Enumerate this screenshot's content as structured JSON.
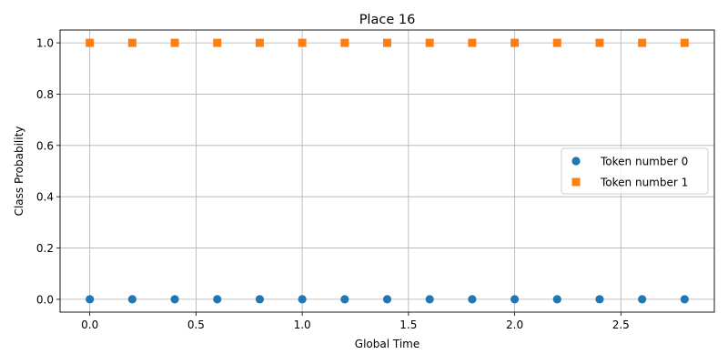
{
  "chart_data": {
    "type": "scatter",
    "title": "Place 16",
    "xlabel": "Global Time",
    "ylabel": "Class Probability",
    "xlim": [
      -0.14,
      2.94
    ],
    "ylim": [
      -0.05,
      1.05
    ],
    "xticks": [
      0.0,
      0.5,
      1.0,
      1.5,
      2.0,
      2.5
    ],
    "xtick_labels": [
      "0.0",
      "0.5",
      "1.0",
      "1.5",
      "2.0",
      "2.5"
    ],
    "yticks": [
      0.0,
      0.2,
      0.4,
      0.6,
      0.8,
      1.0
    ],
    "ytick_labels": [
      "0.0",
      "0.2",
      "0.4",
      "0.6",
      "0.8",
      "1.0"
    ],
    "grid": true,
    "legend_position": "center-right",
    "series": [
      {
        "name": "Token number 0",
        "marker": "circle",
        "color": "#1f77b4",
        "x": [
          0.0,
          0.2,
          0.4,
          0.6,
          0.8,
          1.0,
          1.2,
          1.4,
          1.6,
          1.8,
          2.0,
          2.2,
          2.4,
          2.6,
          2.8
        ],
        "y": [
          0,
          0,
          0,
          0,
          0,
          0,
          0,
          0,
          0,
          0,
          0,
          0,
          0,
          0,
          0
        ]
      },
      {
        "name": "Token number 1",
        "marker": "square",
        "color": "#ff7f0e",
        "x": [
          0.0,
          0.2,
          0.4,
          0.6,
          0.8,
          1.0,
          1.2,
          1.4,
          1.6,
          1.8,
          2.0,
          2.2,
          2.4,
          2.6,
          2.8
        ],
        "y": [
          1,
          1,
          1,
          1,
          1,
          1,
          1,
          1,
          1,
          1,
          1,
          1,
          1,
          1,
          1
        ]
      }
    ]
  }
}
